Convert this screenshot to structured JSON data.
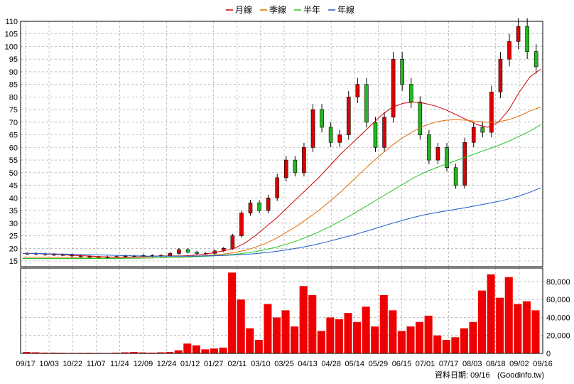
{
  "chart_data": {
    "type": "candlestick-with-volume",
    "legend": [
      {
        "name": "月線",
        "color": "#cc0000"
      },
      {
        "name": "季線",
        "color": "#e06c00"
      },
      {
        "name": "半年",
        "color": "#22c822"
      },
      {
        "name": "年線",
        "color": "#1e5ac8"
      }
    ],
    "legend_placement": "top-center",
    "grid": true,
    "price_axis": {
      "side": "left",
      "ylim": [
        15,
        110
      ],
      "ticks": [
        "15",
        "20",
        "25",
        "30",
        "35",
        "40",
        "45",
        "50",
        "55",
        "60",
        "65",
        "70",
        "75",
        "80",
        "85",
        "90",
        "95",
        "100",
        "105",
        "110"
      ]
    },
    "volume_axis": {
      "side": "right",
      "ylim": [
        0,
        95000
      ],
      "ticks": [
        "0",
        "20,000",
        "40,000",
        "60,000",
        "80,000"
      ]
    },
    "x_ticks": [
      "09/17",
      "10/03",
      "10/22",
      "11/07",
      "11/24",
      "12/09",
      "12/24",
      "01/12",
      "01/27",
      "02/11",
      "03/10",
      "03/25",
      "04/13",
      "04/28",
      "05/14",
      "05/29",
      "06/15",
      "07/01",
      "07/17",
      "08/03",
      "08/18",
      "09/02",
      "09/16"
    ],
    "ma_month": [
      18,
      18,
      17.8,
      17.6,
      17.4,
      17.2,
      17,
      16.8,
      16.6,
      16.5,
      16.5,
      16.6,
      16.8,
      17,
      17,
      17,
      17.2,
      17.6,
      18.2,
      19,
      20,
      22,
      25,
      28.5,
      32,
      36,
      40,
      44,
      48,
      52.5,
      57,
      61,
      65,
      69,
      73,
      76,
      77.5,
      78,
      77.5,
      76.5,
      75,
      73,
      71,
      69,
      68,
      70,
      75,
      82,
      88,
      91
    ],
    "ma_quarter": [
      16.5,
      16.5,
      16.5,
      16.5,
      16.4,
      16.3,
      16.2,
      16.2,
      16.1,
      16.1,
      16.1,
      16.1,
      16.2,
      16.3,
      16.4,
      16.5,
      16.7,
      17,
      17.3,
      17.7,
      18.3,
      19.2,
      20.4,
      22,
      24,
      26.5,
      29,
      32,
      35,
      38.5,
      42,
      46,
      50,
      54,
      57.5,
      61,
      64,
      66.5,
      68.5,
      70,
      70.8,
      71,
      70.8,
      70.3,
      70,
      70.2,
      71,
      72.5,
      74.5,
      76
    ],
    "ma_half": [
      16,
      16,
      16,
      16,
      16,
      16,
      16,
      16,
      16,
      16,
      16.1,
      16.1,
      16.2,
      16.3,
      16.4,
      16.5,
      16.6,
      16.8,
      17,
      17.3,
      17.6,
      18.1,
      18.7,
      19.5,
      20.5,
      21.7,
      23.1,
      24.7,
      26.5,
      28.5,
      30.7,
      33,
      35.5,
      38,
      40.5,
      43,
      45.5,
      48,
      50,
      51.8,
      53.3,
      54.8,
      56.3,
      57.8,
      59.3,
      60.8,
      62.5,
      64.5,
      66.5,
      69
    ],
    "ma_year": [
      18,
      18,
      17.9,
      17.8,
      17.7,
      17.6,
      17.5,
      17.4,
      17.3,
      17.2,
      17.1,
      17,
      16.9,
      16.9,
      16.9,
      16.9,
      16.9,
      17,
      17.1,
      17.2,
      17.4,
      17.6,
      17.9,
      18.3,
      18.8,
      19.4,
      20.1,
      20.9,
      21.8,
      22.8,
      23.9,
      25,
      26.2,
      27.4,
      28.7,
      30,
      31.2,
      32.3,
      33.3,
      34.1,
      34.8,
      35.5,
      36.2,
      37,
      37.8,
      38.6,
      39.6,
      40.8,
      42.3,
      44
    ],
    "close": [
      18,
      17.8,
      17.6,
      17.5,
      17.4,
      17,
      16.8,
      16.5,
      16.4,
      16.6,
      16.8,
      17,
      17,
      17.2,
      17,
      17.2,
      18,
      19.5,
      18.5,
      18,
      18,
      19,
      20,
      25,
      34,
      38,
      35,
      40,
      48,
      55,
      50,
      60,
      75,
      68,
      62,
      65,
      80,
      85,
      70,
      60,
      72,
      95,
      85,
      78,
      65,
      55,
      60,
      52,
      45,
      62,
      68,
      66,
      82,
      95,
      102,
      108,
      98,
      92
    ],
    "volume": [
      1500,
      1200,
      900,
      900,
      800,
      700,
      700,
      800,
      700,
      600,
      900,
      1200,
      1500,
      1100,
      900,
      1200,
      1500,
      3500,
      11000,
      9000,
      4500,
      5500,
      6500,
      90000,
      60000,
      28000,
      15000,
      55000,
      40000,
      48000,
      30000,
      75000,
      65000,
      25000,
      40000,
      38000,
      45000,
      35000,
      52000,
      30000,
      65000,
      48000,
      25000,
      30000,
      35000,
      42000,
      20000,
      15000,
      18000,
      28000,
      35000,
      70000,
      88000,
      62000,
      85000,
      55000,
      58000,
      48000
    ]
  },
  "footer": {
    "label": "資料日期: 09/16",
    "source": "(Goodinfo.tw)"
  }
}
